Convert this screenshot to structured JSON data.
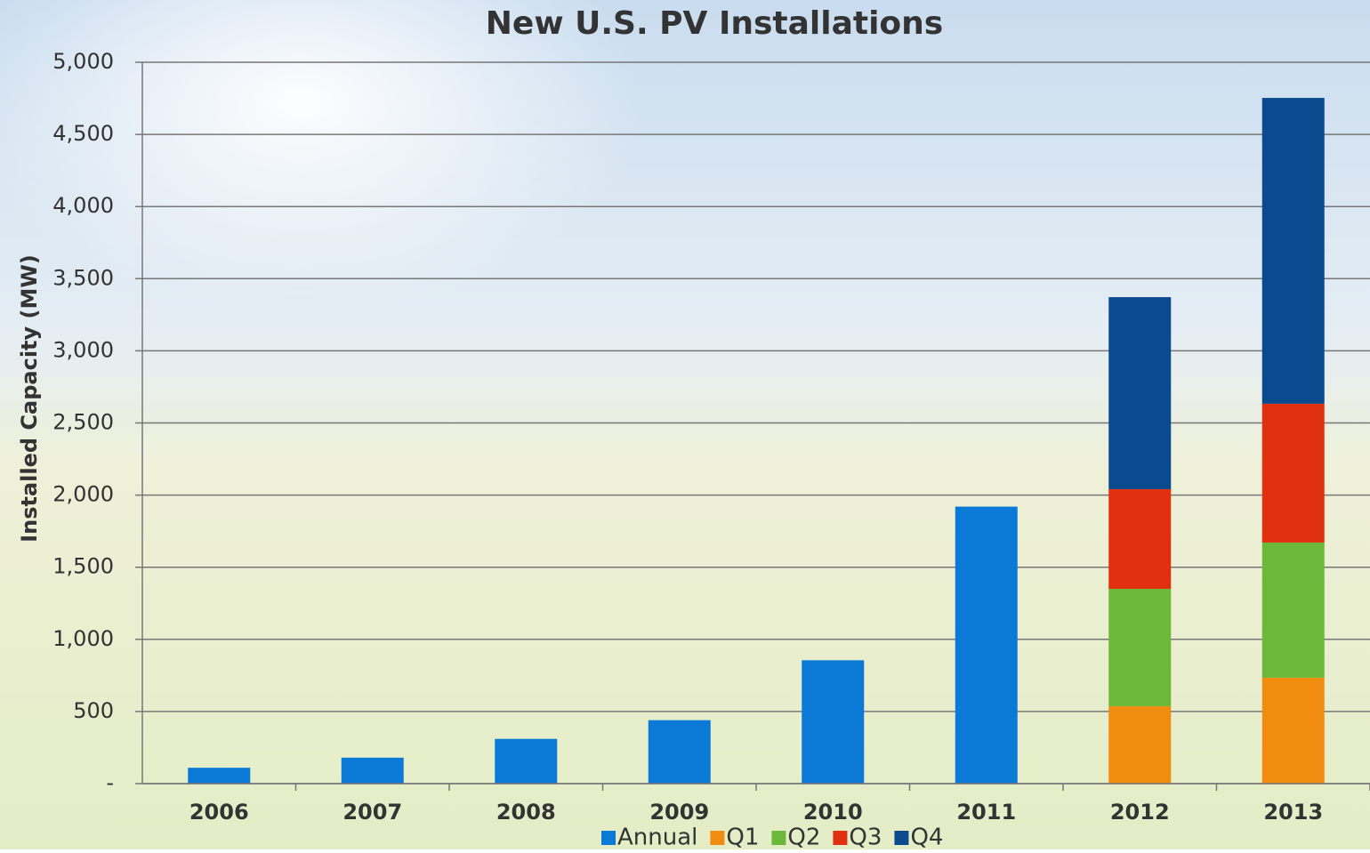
{
  "chart_data": {
    "type": "stacked_bar",
    "title": "New U.S. PV Installations",
    "y_label": "Installed Capacity (MW)",
    "categories": [
      "2006",
      "2007",
      "2008",
      "2009",
      "2010",
      "2011",
      "2012",
      "2013"
    ],
    "series": [
      {
        "name": "Annual",
        "color": "#0a7ad6",
        "values": [
          110,
          180,
          310,
          440,
          855,
          1920,
          null,
          null
        ]
      },
      {
        "name": "Q1",
        "color": "#f08c10",
        "values": [
          null,
          null,
          null,
          null,
          null,
          null,
          536,
          734
        ]
      },
      {
        "name": "Q2",
        "color": "#6cb83a",
        "values": [
          null,
          null,
          null,
          null,
          null,
          null,
          814,
          937
        ]
      },
      {
        "name": "Q3",
        "color": "#e03010",
        "values": [
          null,
          null,
          null,
          null,
          null,
          null,
          691,
          962
        ]
      },
      {
        "name": "Q4",
        "color": "#0c4a90",
        "values": [
          null,
          null,
          null,
          null,
          null,
          null,
          1331,
          2120
        ]
      }
    ],
    "ylim": [
      0,
      5000
    ],
    "yticks": [
      {
        "value": 0,
        "label": "-"
      },
      500,
      {
        "value": 1000,
        "label": "1,000"
      },
      {
        "value": 1500,
        "label": "1,500"
      },
      {
        "value": 2000,
        "label": "2,000"
      },
      {
        "value": 2500,
        "label": "2,500"
      },
      {
        "value": 3000,
        "label": "3,000"
      },
      {
        "value": 3500,
        "label": "3,500"
      },
      {
        "value": 4000,
        "label": "4,000"
      },
      {
        "value": 4500,
        "label": "4,500"
      },
      {
        "value": 5000,
        "label": "5,000"
      }
    ],
    "grid": true,
    "legend": "bottom"
  }
}
